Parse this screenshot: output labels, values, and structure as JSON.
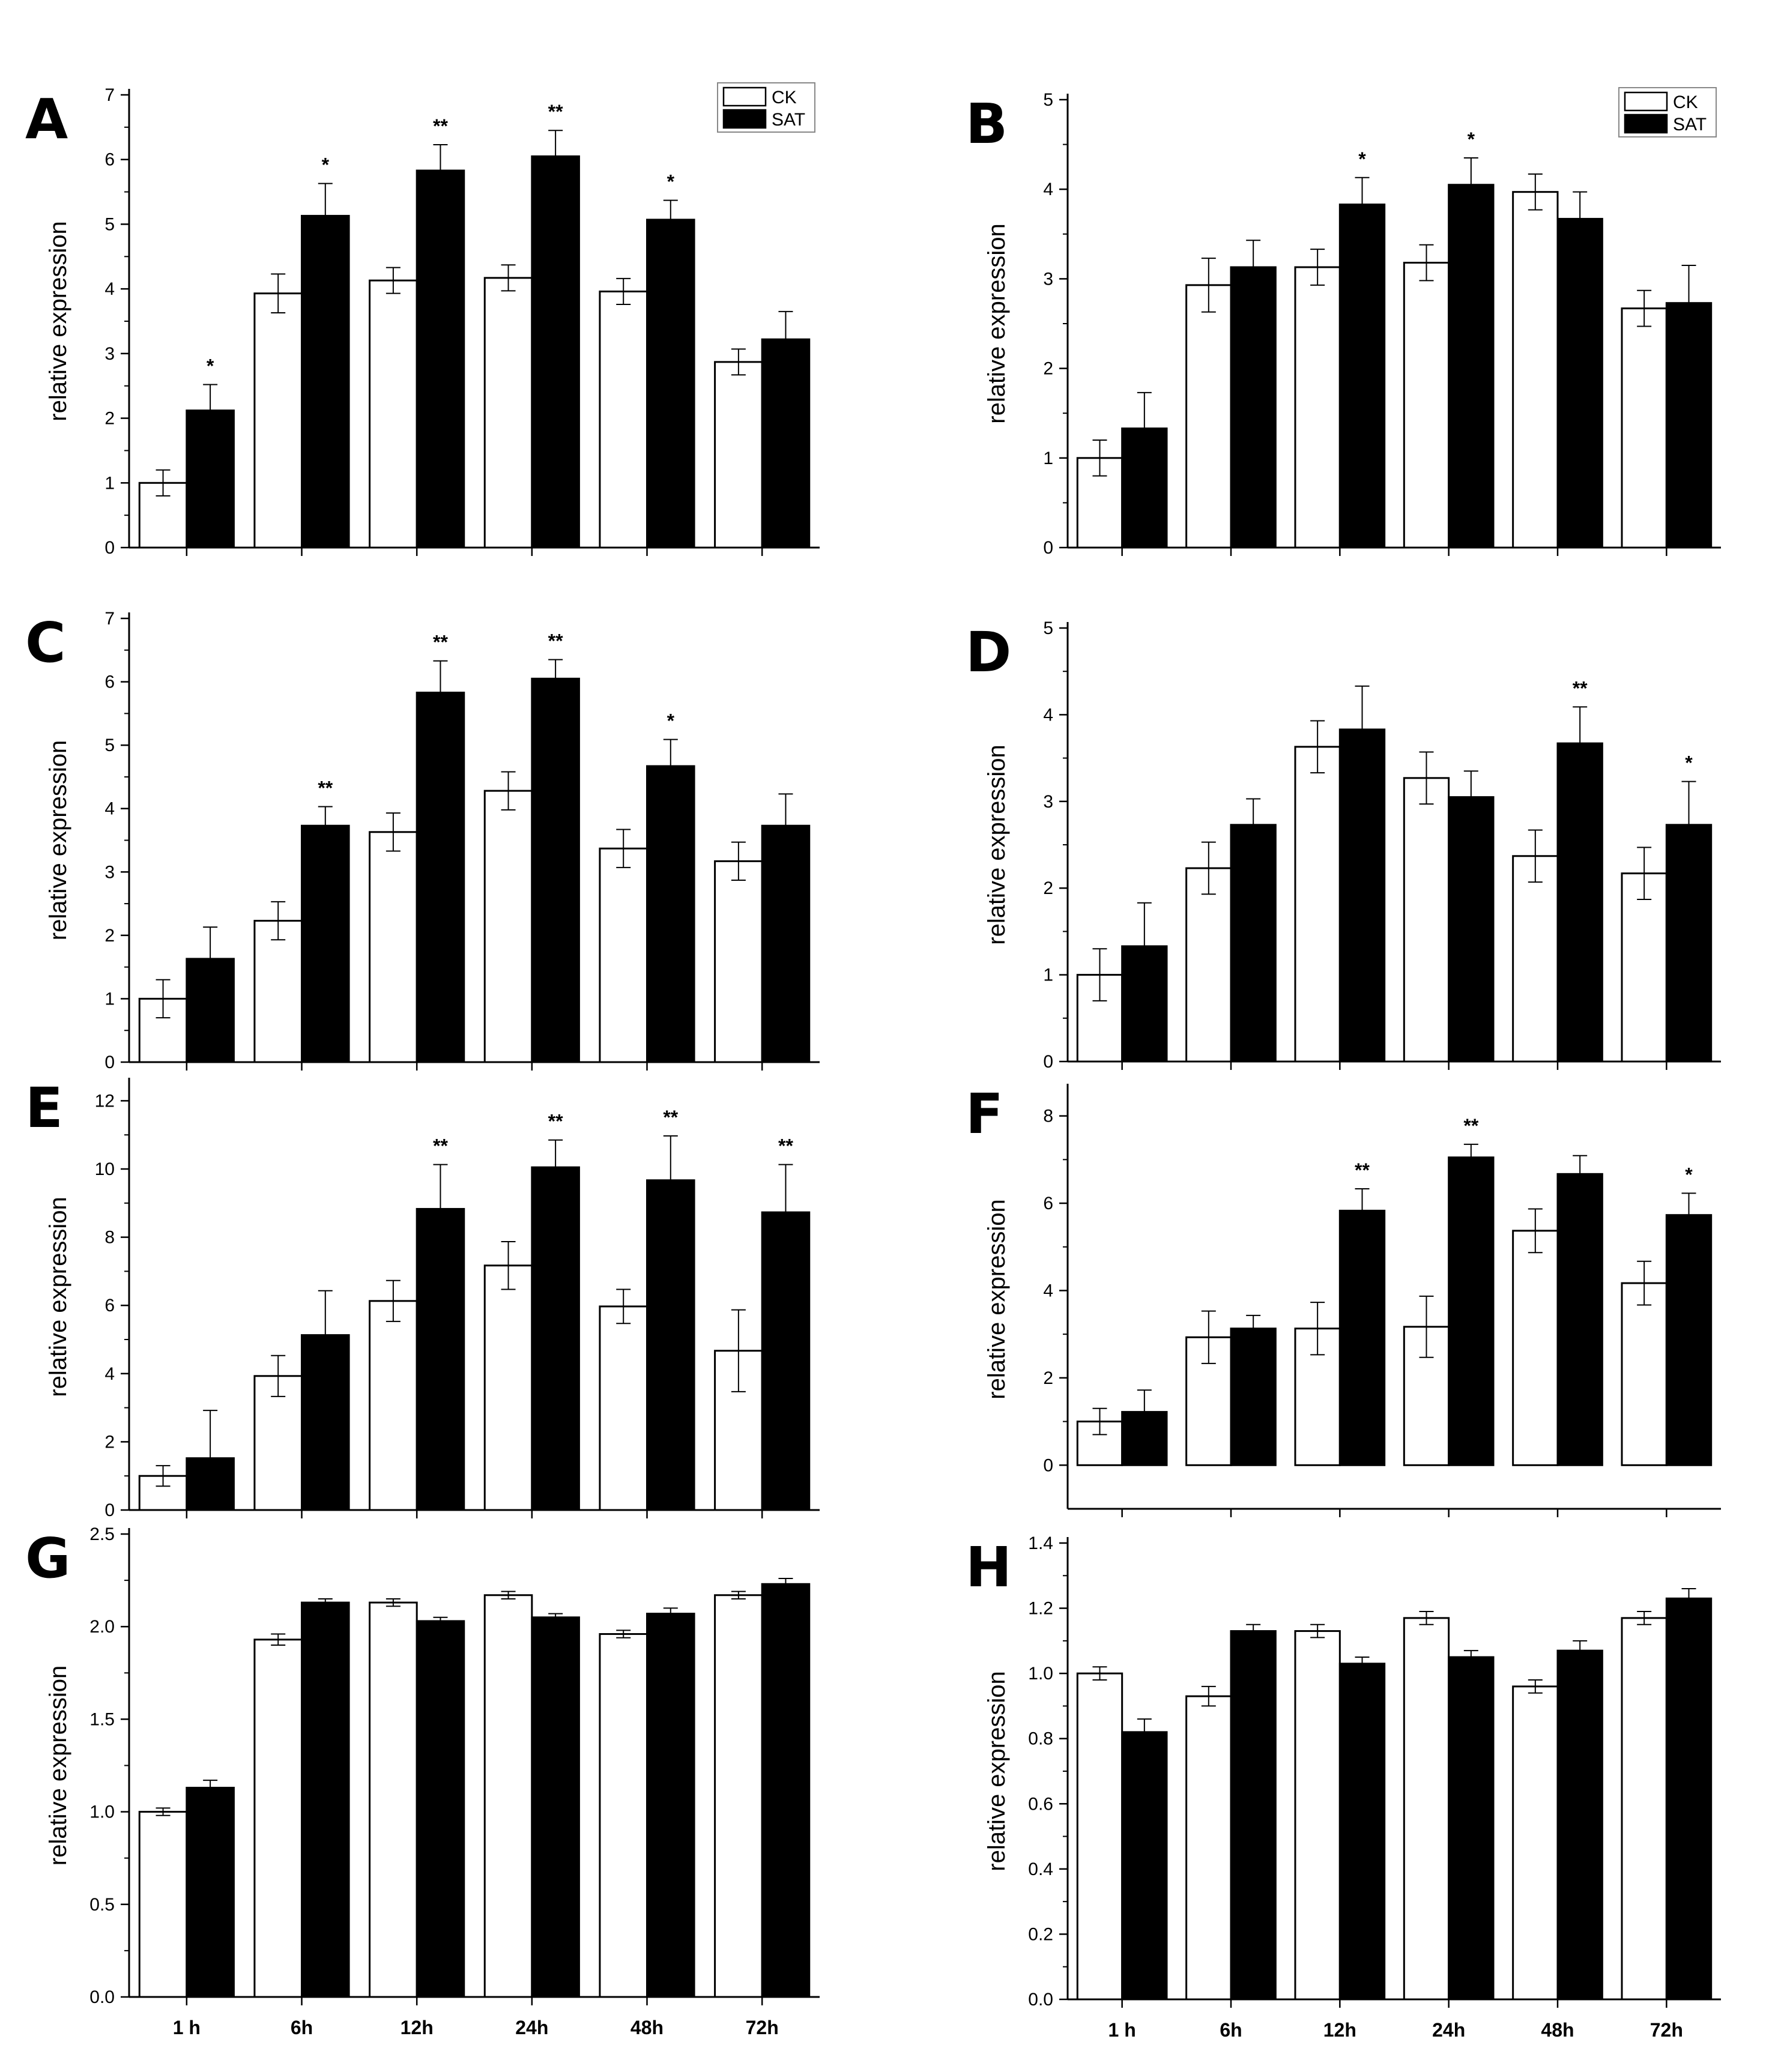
{
  "chart_data": [
    {
      "type": "bar",
      "panel_label": "A",
      "ylabel": "relative expression",
      "categories": [
        "1 h",
        "6h",
        "12h",
        "24h",
        "48h",
        "72h"
      ],
      "show_xticklabels": false,
      "ylim": [
        0,
        7
      ],
      "yticks": [
        0,
        1,
        2,
        3,
        4,
        5,
        6,
        7
      ],
      "legend": {
        "entries": [
          "CK",
          "SAT"
        ]
      },
      "series": [
        {
          "name": "CK",
          "color": "#ffffff",
          "values": [
            1.0,
            3.93,
            4.13,
            4.17,
            3.96,
            2.87
          ],
          "errors": [
            0.2,
            0.3,
            0.2,
            0.2,
            0.2,
            0.2
          ]
        },
        {
          "name": "SAT",
          "color": "#000000",
          "values": [
            2.12,
            5.13,
            5.83,
            6.05,
            5.07,
            3.22
          ],
          "errors": [
            0.4,
            0.5,
            0.4,
            0.4,
            0.3,
            0.43
          ]
        }
      ],
      "annotations": [
        "*",
        "*",
        "**",
        "**",
        "*",
        ""
      ]
    },
    {
      "type": "bar",
      "panel_label": "B",
      "ylabel": "relative expression",
      "categories": [
        "1 h",
        "6h",
        "12h",
        "24h",
        "48h",
        "72h"
      ],
      "show_xticklabels": false,
      "ylim": [
        0,
        5
      ],
      "yticks": [
        0,
        1,
        2,
        3,
        4,
        5
      ],
      "legend": {
        "entries": [
          "CK",
          "SAT"
        ]
      },
      "series": [
        {
          "name": "CK",
          "color": "#ffffff",
          "values": [
            1.0,
            2.93,
            3.13,
            3.18,
            3.97,
            2.67
          ],
          "errors": [
            0.2,
            0.3,
            0.2,
            0.2,
            0.2,
            0.2
          ]
        },
        {
          "name": "SAT",
          "color": "#000000",
          "values": [
            1.33,
            3.13,
            3.83,
            4.05,
            3.67,
            2.73
          ],
          "errors": [
            0.4,
            0.3,
            0.3,
            0.3,
            0.3,
            0.42
          ]
        }
      ],
      "annotations": [
        "",
        "",
        "*",
        "*",
        "",
        ""
      ]
    },
    {
      "type": "bar",
      "panel_label": "C",
      "ylabel": "relative expression",
      "categories": [
        "1 h",
        "6h",
        "12h",
        "24h",
        "48h",
        "72h"
      ],
      "show_xticklabels": false,
      "ylim": [
        0,
        7
      ],
      "yticks": [
        0,
        1,
        2,
        3,
        4,
        5,
        6,
        7
      ],
      "series": [
        {
          "name": "CK",
          "color": "#ffffff",
          "values": [
            1.0,
            2.23,
            3.63,
            4.28,
            3.37,
            3.17
          ],
          "errors": [
            0.3,
            0.3,
            0.3,
            0.3,
            0.3,
            0.3
          ]
        },
        {
          "name": "SAT",
          "color": "#000000",
          "values": [
            1.63,
            3.73,
            5.83,
            6.05,
            4.67,
            3.73
          ],
          "errors": [
            0.5,
            0.3,
            0.5,
            0.3,
            0.42,
            0.5
          ]
        }
      ],
      "annotations": [
        "",
        "**",
        "**",
        "**",
        "*",
        ""
      ]
    },
    {
      "type": "bar",
      "panel_label": "D",
      "ylabel": "relative expression",
      "categories": [
        "1 h",
        "6h",
        "12h",
        "24h",
        "48h",
        "72h"
      ],
      "show_xticklabels": false,
      "ylim": [
        0,
        5
      ],
      "yticks": [
        0,
        1,
        2,
        3,
        4,
        5
      ],
      "series": [
        {
          "name": "CK",
          "color": "#ffffff",
          "values": [
            1.0,
            2.23,
            3.63,
            3.27,
            2.37,
            2.17
          ],
          "errors": [
            0.3,
            0.3,
            0.3,
            0.3,
            0.3,
            0.3
          ]
        },
        {
          "name": "SAT",
          "color": "#000000",
          "values": [
            1.33,
            2.73,
            3.83,
            3.05,
            3.67,
            2.73
          ],
          "errors": [
            0.5,
            0.3,
            0.5,
            0.3,
            0.42,
            0.5
          ]
        }
      ],
      "annotations": [
        "",
        "",
        "",
        "",
        "**",
        "*"
      ]
    },
    {
      "type": "bar",
      "panel_label": "E",
      "ylabel": "relative expression",
      "categories": [
        "1 h",
        "6h",
        "12h",
        "24h",
        "48h",
        "72h"
      ],
      "show_xticklabels": false,
      "ylim": [
        0,
        12.5
      ],
      "yticks": [
        0,
        2,
        4,
        6,
        8,
        10,
        12
      ],
      "series": [
        {
          "name": "CK",
          "color": "#ffffff",
          "values": [
            1.0,
            3.93,
            6.13,
            7.17,
            5.97,
            4.67
          ],
          "errors": [
            0.3,
            0.6,
            0.6,
            0.7,
            0.5,
            1.2
          ]
        },
        {
          "name": "SAT",
          "color": "#000000",
          "values": [
            1.52,
            5.13,
            8.83,
            10.05,
            9.67,
            8.73
          ],
          "errors": [
            1.4,
            1.3,
            1.3,
            0.8,
            1.3,
            1.4
          ]
        }
      ],
      "annotations": [
        "",
        "",
        "**",
        "**",
        "**",
        "**"
      ]
    },
    {
      "type": "bar",
      "panel_label": "F",
      "ylabel": "relative expression",
      "categories": [
        "1 h",
        "6h",
        "12h",
        "24h",
        "48h",
        "72h"
      ],
      "show_xticklabels": false,
      "ylim": [
        -1,
        8.6
      ],
      "yticks": [
        0,
        2,
        4,
        6,
        8
      ],
      "series": [
        {
          "name": "CK",
          "color": "#ffffff",
          "values": [
            1.0,
            2.93,
            3.13,
            3.17,
            5.37,
            4.17
          ],
          "errors": [
            0.3,
            0.6,
            0.6,
            0.7,
            0.5,
            0.5
          ]
        },
        {
          "name": "SAT",
          "color": "#000000",
          "values": [
            1.22,
            3.13,
            5.83,
            7.05,
            6.67,
            5.73
          ],
          "errors": [
            0.5,
            0.3,
            0.5,
            0.3,
            0.42,
            0.5
          ]
        }
      ],
      "annotations": [
        "",
        "",
        "**",
        "**",
        "",
        "*"
      ]
    },
    {
      "type": "bar",
      "panel_label": "G",
      "ylabel": "relative expression",
      "categories": [
        "1 h",
        "6h",
        "12h",
        "24h",
        "48h",
        "72h"
      ],
      "show_xticklabels": true,
      "ylim": [
        0,
        2.5
      ],
      "yticks": [
        0.0,
        0.5,
        1.0,
        1.5,
        2.0,
        2.5
      ],
      "ytick_decimals": 1,
      "series": [
        {
          "name": "CK",
          "color": "#ffffff",
          "values": [
            1.0,
            1.93,
            2.13,
            2.17,
            1.96,
            2.17
          ],
          "errors": [
            0.02,
            0.03,
            0.02,
            0.02,
            0.02,
            0.02
          ]
        },
        {
          "name": "SAT",
          "color": "#000000",
          "values": [
            1.13,
            2.13,
            2.03,
            2.05,
            2.07,
            2.23
          ],
          "errors": [
            0.04,
            0.02,
            0.02,
            0.02,
            0.03,
            0.03
          ]
        }
      ],
      "annotations": [
        "",
        "",
        "",
        "",
        "",
        ""
      ]
    },
    {
      "type": "bar",
      "panel_label": "H",
      "ylabel": "relative expression",
      "categories": [
        "1 h",
        "6h",
        "12h",
        "24h",
        "48h",
        "72h"
      ],
      "show_xticklabels": true,
      "ylim": [
        0,
        1.4
      ],
      "yticks": [
        0.0,
        0.2,
        0.4,
        0.6,
        0.8,
        1.0,
        1.2,
        1.4
      ],
      "ytick_decimals": 1,
      "series": [
        {
          "name": "CK",
          "color": "#ffffff",
          "values": [
            1.0,
            0.93,
            1.13,
            1.17,
            0.96,
            1.17
          ],
          "errors": [
            0.02,
            0.03,
            0.02,
            0.02,
            0.02,
            0.02
          ]
        },
        {
          "name": "SAT",
          "color": "#000000",
          "values": [
            0.82,
            1.13,
            1.03,
            1.05,
            1.07,
            1.23
          ],
          "errors": [
            0.04,
            0.02,
            0.02,
            0.02,
            0.03,
            0.03
          ]
        }
      ],
      "annotations": [
        "",
        "",
        "",
        "",
        "",
        ""
      ]
    }
  ]
}
